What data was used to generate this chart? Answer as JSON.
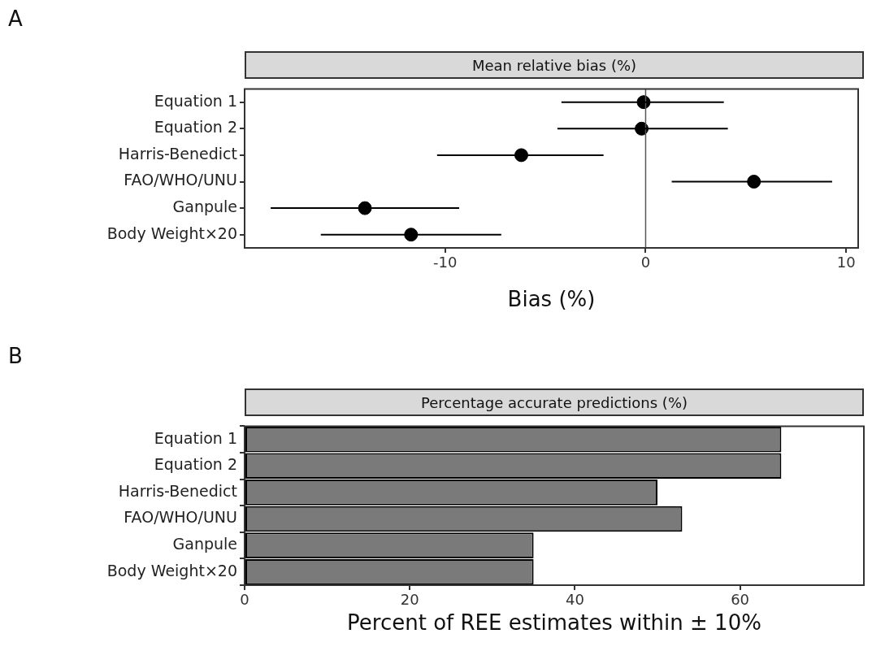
{
  "chart_data": [
    {
      "type": "scatter",
      "title": "Mean relative bias (%)",
      "xlabel": "Bias (%)",
      "annotations": [
        "A"
      ],
      "categories": [
        "Equation 1",
        "Equation 2",
        "Harris-Benedict",
        "FAO/WHO/UNU",
        "Ganpule",
        "Body Weight×20"
      ],
      "values": [
        -0.1,
        -0.2,
        -6.2,
        5.4,
        -14.0,
        -11.7
      ],
      "errors": [
        [
          -4.2,
          3.9
        ],
        [
          -4.4,
          4.1
        ],
        [
          -10.4,
          -2.1
        ],
        [
          1.3,
          9.3
        ],
        [
          -18.7,
          -9.3
        ],
        [
          -16.2,
          -7.2
        ]
      ],
      "color": "#000000",
      "marker": "circle",
      "orientation": "horizontal",
      "xlim": [
        -20,
        10.6
      ],
      "xticks": [
        -10,
        0,
        10
      ],
      "grid": false,
      "legend": false,
      "ref_lines": [
        {
          "axis": "x",
          "value": 0,
          "color": "#555555"
        }
      ]
    },
    {
      "type": "bar",
      "title": "Percentage accurate predictions (%)",
      "xlabel": "Percent of REE estimates within ± 10%",
      "annotations": [
        "B"
      ],
      "categories": [
        "Equation 1",
        "Equation 2",
        "Harris-Benedict",
        "FAO/WHO/UNU",
        "Ganpule",
        "Body Weight×20"
      ],
      "values": [
        65,
        65,
        50,
        53,
        35,
        35
      ],
      "color": "#7a7a7a",
      "orientation": "horizontal",
      "xlim": [
        0,
        75
      ],
      "xticks": [
        0,
        20,
        40,
        60
      ],
      "grid": false,
      "legend": false
    }
  ]
}
